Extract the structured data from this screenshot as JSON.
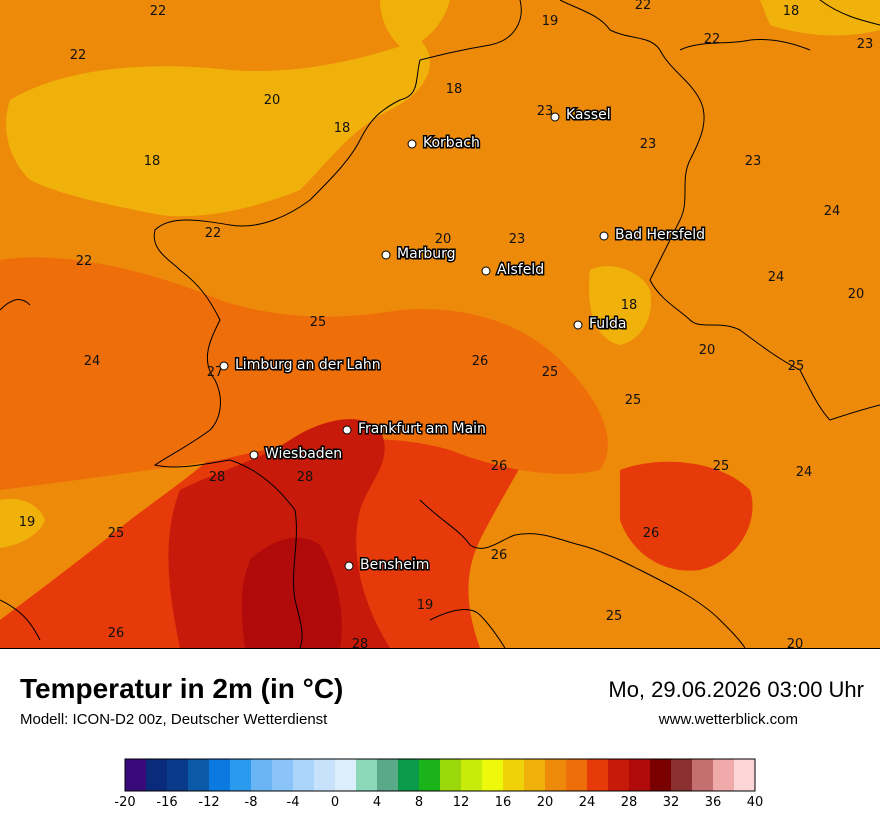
{
  "footer": {
    "title": "Temperatur in 2m (in °C)",
    "subtitle": "Modell: ICON-D2 00z, Deutscher Wetterdienst",
    "datetime": "Mo, 29.06.2026 03:00 Uhr",
    "website": "www.wetterblick.com"
  },
  "legend": {
    "colors": [
      "#3a0a7a",
      "#0a2a7a",
      "#0a3a8a",
      "#0a5aa8",
      "#0a7ae0",
      "#2a9aee",
      "#6ab4f4",
      "#8ac4f8",
      "#aad4fa",
      "#c8e2fc",
      "#dceefc",
      "#8ad8b8",
      "#5aaa8a",
      "#0a9a4a",
      "#1ab41a",
      "#9ad80a",
      "#c8ec0a",
      "#eef80a",
      "#f0d20a",
      "#f0b20a",
      "#ee8a0a",
      "#ee6e0a",
      "#e63a0a",
      "#c81a0a",
      "#b00a0a",
      "#7a0000",
      "#8a3030",
      "#c47070",
      "#f0aaaa",
      "#fcd6d6"
    ],
    "tick_labels": [
      "-20",
      "-16",
      "-12",
      "-8",
      "-4",
      "0",
      "4",
      "8",
      "12",
      "16",
      "20",
      "24",
      "28",
      "32",
      "36",
      "40"
    ]
  },
  "cities": [
    {
      "name": "Kassel"
    },
    {
      "name": "Korbach"
    },
    {
      "name": "Bad Hersfeld"
    },
    {
      "name": "Marburg"
    },
    {
      "name": "Alsfeld"
    },
    {
      "name": "Fulda"
    },
    {
      "name": "Limburg an der Lahn"
    },
    {
      "name": "Frankfurt am Main"
    },
    {
      "name": "Wiesbaden"
    },
    {
      "name": "Bensheim"
    }
  ],
  "temperature_labels": [
    "22",
    "19",
    "22",
    "18",
    "22",
    "23",
    "20",
    "22",
    "18",
    "23",
    "18",
    "23",
    "23",
    "18",
    "24",
    "22",
    "20",
    "22",
    "23",
    "24",
    "20",
    "25",
    "18",
    "24",
    "26",
    "20",
    "25",
    "25",
    "27",
    "25",
    "26",
    "25",
    "24",
    "28",
    "28",
    "19",
    "25",
    "26",
    "26",
    "19",
    "25",
    "26",
    "28",
    "20"
  ]
}
